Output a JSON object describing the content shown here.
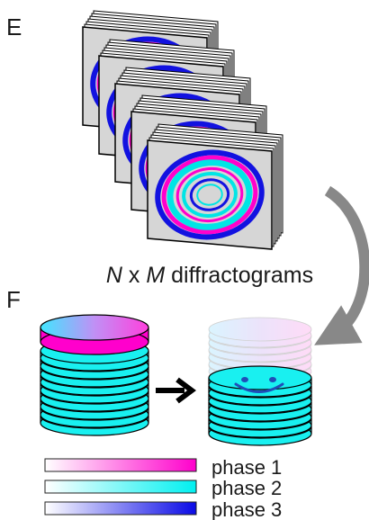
{
  "panels": {
    "e": {
      "letter": "E",
      "caption": {
        "n": "N",
        "x": " x ",
        "m": "M",
        "rest": " diffractograms"
      }
    },
    "f": {
      "letter": "F"
    }
  },
  "legend": [
    {
      "label": "phase 1",
      "color": "#ff00cc"
    },
    {
      "label": "phase 2",
      "color": "#00f0f0"
    },
    {
      "label": "phase 3",
      "color": "#0a0ae6"
    }
  ],
  "colors": {
    "frame_fill": "#d6d6d6",
    "ring_magenta": "#ff00cc",
    "ring_cyan": "#00e5e5",
    "ring_blue": "#1212e0",
    "disc_cyan": "#19f0f0",
    "arrow_gray": "#888888"
  },
  "icons": {
    "process_arrow": "right-arrow",
    "curved_arrow": "curved-arrow",
    "face": "smiley-face"
  }
}
